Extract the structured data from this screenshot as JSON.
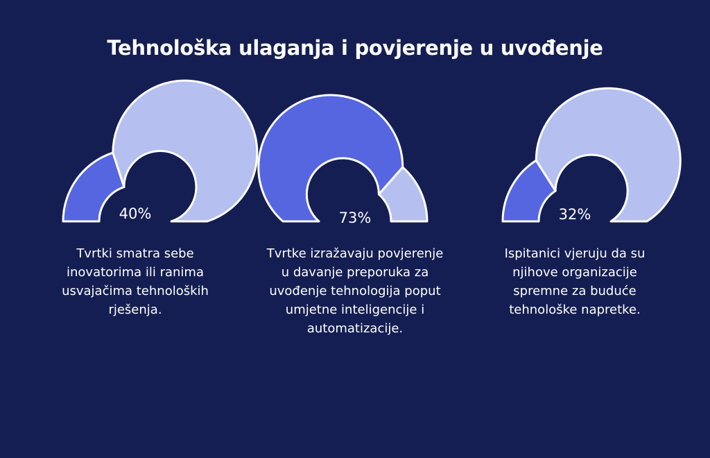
{
  "title": "Tehnološka ulaganja i povjerenje u uvođenje",
  "colors": {
    "background": "#141e52",
    "filled": "#5666e0",
    "remainder": "#b5bff0",
    "outline": "#ffffff"
  },
  "chart_data": {
    "type": "gauge",
    "title": "Tehnološka ulaganja i povjerenje u uvođenje",
    "gauges": [
      {
        "value": 40,
        "label": "40%",
        "caption": [
          "Tvrtki smatra sebe",
          "inovatorima ili ranima",
          "usvajačima tehnoloških",
          "rješenja."
        ]
      },
      {
        "value": 73,
        "label": "73%",
        "caption": [
          "Tvrtke izražavaju povjerenje",
          "u davanje preporuka za",
          "uvođenje tehnologija poput",
          "umjetne inteligencije i",
          "automatizacije."
        ]
      },
      {
        "value": 32,
        "label": "32%",
        "caption": [
          "Ispitanici vjeruju da su",
          "njihove organizacije",
          "spremne za buduće",
          "tehnološke napretke."
        ]
      }
    ]
  }
}
